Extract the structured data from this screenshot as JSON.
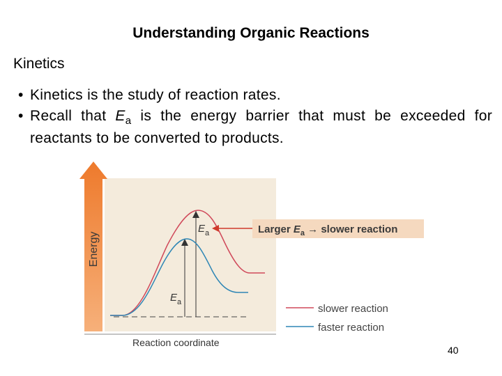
{
  "slide": {
    "title": "Understanding Organic Reactions",
    "section": "Kinetics",
    "bullets": {
      "b1": "Kinetics is the study of reaction rates.",
      "b2_pre": "Recall that ",
      "b2_var": "E",
      "b2_sub": "a",
      "b2_post": " is the energy barrier that must be exceeded for reactants to be converted to products."
    },
    "page_number": "40"
  },
  "diagram": {
    "y_axis_label": "Energy",
    "x_axis_label": "Reaction coordinate",
    "ea_symbol": "E",
    "ea_subscript": "a",
    "callout_pre": "Larger ",
    "callout_post": " slower reaction",
    "legend": [
      {
        "label": "slower reaction",
        "color": "#d0495a"
      },
      {
        "label": "faster reaction",
        "color": "#2e86b5"
      }
    ],
    "colors": {
      "panel": "#f4ebdc",
      "arrow": "#f08a3c",
      "callout_box": "#f5d9bf",
      "callout_arrow": "#cf3a2c"
    }
  }
}
